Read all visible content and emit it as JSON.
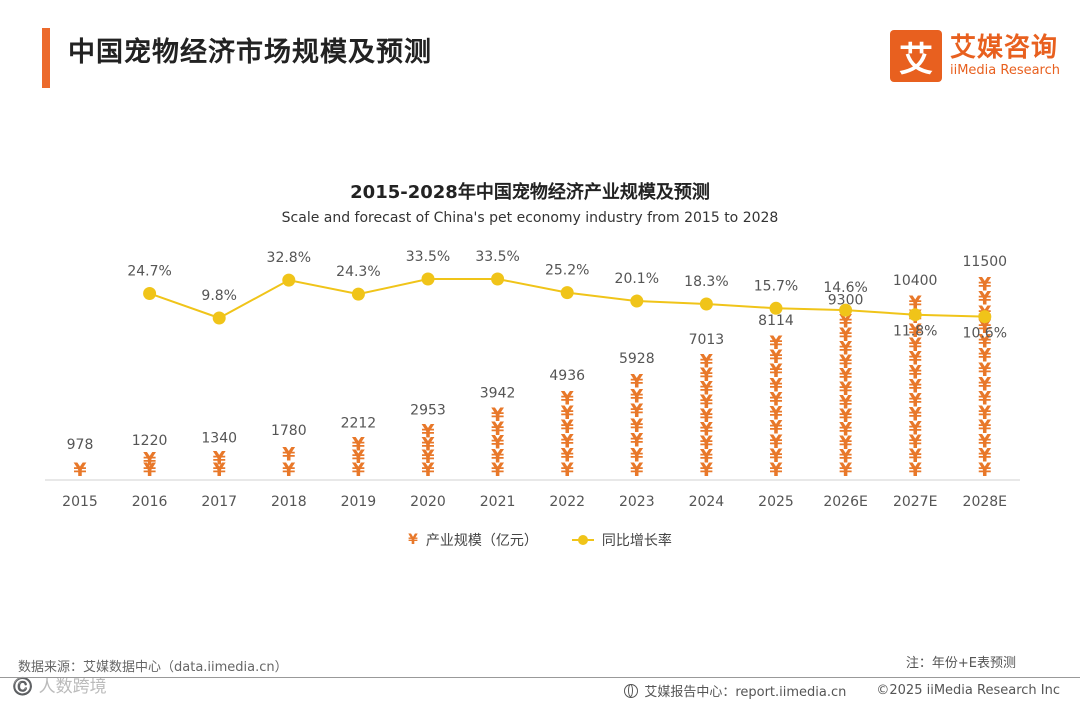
{
  "header": {
    "title": "中国宠物经济市场规模及预测",
    "brand_logo": "艾",
    "brand_cn": "艾媒咨询",
    "brand_en": "iiMedia Research"
  },
  "chart_data": {
    "type": "bar",
    "title": "2015-2028年中国宠物经济产业规模及预测",
    "subtitle": "Scale and forecast of China's pet economy industry from 2015 to 2028",
    "categories": [
      "2015",
      "2016",
      "2017",
      "2018",
      "2019",
      "2020",
      "2021",
      "2022",
      "2023",
      "2024",
      "2025",
      "2026E",
      "2027E",
      "2028E"
    ],
    "series": [
      {
        "name": "产业规模（亿元）",
        "type": "bar",
        "marker": "¥",
        "values": [
          978,
          1220,
          1340,
          1780,
          2212,
          2953,
          3942,
          4936,
          5928,
          7013,
          8114,
          9300,
          10400,
          11500
        ]
      },
      {
        "name": "同比增长率",
        "type": "line",
        "values": [
          null,
          24.7,
          9.8,
          32.8,
          24.3,
          33.5,
          33.5,
          25.2,
          20.1,
          18.3,
          15.7,
          14.6,
          11.8,
          10.6
        ],
        "labels": [
          "",
          "24.7%",
          "9.8%",
          "32.8%",
          "24.3%",
          "33.5%",
          "33.5%",
          "25.2%",
          "20.1%",
          "18.3%",
          "15.7%",
          "14.6%",
          "11.8%",
          "10.6%"
        ]
      }
    ],
    "bar_ylim": [
      0,
      16000
    ],
    "line_ylim": [
      -60,
      60
    ],
    "colors": {
      "bar": "#e8782a",
      "line": "#f0c419",
      "axis": "#d0d0d0",
      "label": "#555555"
    }
  },
  "legend": {
    "bar_label": "产业规模（亿元）",
    "line_label": "同比增长率"
  },
  "notes": {
    "forecast_note": "注：年份+E表预测",
    "source": "数据来源：艾媒数据中心（data.iimedia.cn）",
    "watermark": "©️ 人数跨境"
  },
  "footer": {
    "report_center": "艾媒报告中心：report.iimedia.cn",
    "copyright": "©2025  iiMedia Research  Inc"
  }
}
